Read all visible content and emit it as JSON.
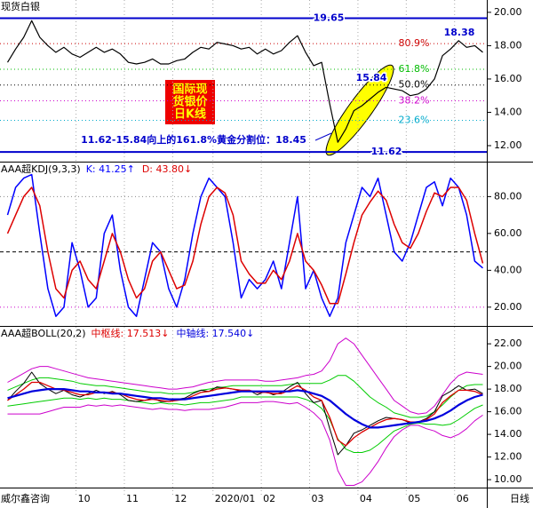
{
  "chart_data": [
    {
      "type": "line",
      "title": "现货白银",
      "series": [
        {
          "color": "#000000",
          "width": 1.2,
          "values": [
            17.0,
            17.8,
            18.5,
            19.5,
            18.5,
            18.0,
            17.6,
            17.9,
            17.5,
            17.3,
            17.6,
            17.9,
            17.6,
            17.8,
            17.5,
            17.0,
            16.9,
            17.0,
            17.2,
            16.9,
            16.9,
            17.1,
            17.2,
            17.6,
            17.9,
            17.8,
            18.2,
            18.1,
            18.0,
            17.8,
            17.9,
            17.5,
            17.8,
            17.5,
            17.7,
            18.2,
            18.6,
            17.6,
            16.8,
            17.0,
            14.5,
            12.2,
            13.0,
            14.1,
            14.4,
            14.8,
            15.2,
            15.5,
            15.4,
            15.3,
            15.0,
            15.1,
            15.4,
            16.0,
            17.4,
            17.8,
            18.3,
            17.9,
            18.0,
            17.6
          ]
        }
      ],
      "ylim": [
        11.04,
        20.74
      ],
      "yticks": [
        {
          "value": 12,
          "label": "12.00"
        },
        {
          "value": 14,
          "label": "14.00"
        },
        {
          "value": 16,
          "label": "16.00"
        },
        {
          "value": 18,
          "label": "18.00"
        },
        {
          "value": 20,
          "label": "20.00"
        }
      ],
      "hlines": [
        {
          "value": 19.65,
          "label": "19.65",
          "color": "#0000cc",
          "style": "solid"
        },
        {
          "value": 11.62,
          "label": "11.62",
          "color": "#0000cc",
          "style": "solid"
        },
        {
          "value": 18.12,
          "label": "80.9%",
          "color": "#cc0000",
          "style": "dotted"
        },
        {
          "value": 16.58,
          "label": "61.8%",
          "color": "#00bb00",
          "style": "dotted"
        },
        {
          "value": 15.64,
          "label": "50.0%",
          "color": "#000000",
          "style": "dotted"
        },
        {
          "value": 14.69,
          "label": "38.2%",
          "color": "#cc00cc",
          "style": "dotted"
        },
        {
          "value": 13.52,
          "label": "23.6%",
          "color": "#00aacc",
          "style": "dotted"
        }
      ],
      "annotations": [
        {
          "text": "15.84",
          "color": "#0000cc"
        },
        {
          "text": "18.38",
          "color": "#0000cc"
        },
        {
          "text": "11.62-15.84向上的161.8%黄金分割位：18.45",
          "color": "#0000cc"
        }
      ],
      "badge": [
        "国际现",
        "货银价",
        "日K线"
      ]
    },
    {
      "type": "line",
      "title": "AAA超KDJ(9,3,3)",
      "series": [
        {
          "name": "K: 41.25↑",
          "color": "#0000ff",
          "width": 1.5,
          "values": [
            70,
            85,
            90,
            92,
            60,
            30,
            15,
            20,
            55,
            40,
            20,
            25,
            60,
            70,
            40,
            20,
            15,
            35,
            55,
            50,
            30,
            20,
            35,
            60,
            80,
            90,
            85,
            80,
            55,
            25,
            35,
            30,
            35,
            45,
            30,
            55,
            80,
            30,
            40,
            25,
            15,
            25,
            55,
            70,
            85,
            80,
            90,
            70,
            50,
            45,
            55,
            70,
            85,
            88,
            75,
            90,
            85,
            70,
            45,
            41.25
          ]
        },
        {
          "name": "D: 43.80↓",
          "color": "#dd0000",
          "width": 1.5,
          "values": [
            60,
            70,
            80,
            85,
            75,
            50,
            30,
            25,
            40,
            45,
            35,
            30,
            45,
            60,
            50,
            35,
            25,
            30,
            45,
            50,
            40,
            30,
            32,
            45,
            65,
            80,
            85,
            82,
            70,
            45,
            38,
            33,
            33,
            40,
            35,
            45,
            60,
            45,
            40,
            32,
            22,
            22,
            38,
            55,
            70,
            77,
            83,
            78,
            65,
            55,
            52,
            60,
            72,
            82,
            80,
            85,
            85,
            78,
            60,
            43.8
          ]
        }
      ],
      "ylim": [
        9.8,
        98.5
      ],
      "yticks": [
        {
          "value": 20,
          "label": "20.00"
        },
        {
          "value": 40,
          "label": "40.00"
        },
        {
          "value": 60,
          "label": "60.00"
        },
        {
          "value": 80,
          "label": "80.00"
        }
      ],
      "hlines": [
        {
          "value": 80,
          "color": "#888888",
          "style": "dotted"
        },
        {
          "value": 50,
          "color": "#000000",
          "style": "dashed"
        },
        {
          "value": 20,
          "color": "#cc00cc",
          "style": "dotted"
        }
      ]
    },
    {
      "type": "line",
      "title": "AAA超BOLL(20,2)",
      "series": [
        {
          "color": "#cc00cc",
          "width": 1,
          "values": [
            18.6,
            19.0,
            19.4,
            19.8,
            20.0,
            20.0,
            19.8,
            19.6,
            19.4,
            19.2,
            19.0,
            18.9,
            18.8,
            18.7,
            18.6,
            18.5,
            18.4,
            18.3,
            18.2,
            18.1,
            18.0,
            18.0,
            18.1,
            18.2,
            18.4,
            18.6,
            18.7,
            18.8,
            18.8,
            18.8,
            18.8,
            18.8,
            18.7,
            18.7,
            18.8,
            18.9,
            19.0,
            19.2,
            19.3,
            19.6,
            20.5,
            22.0,
            22.5,
            22.0,
            21.0,
            20.0,
            19.0,
            18.0,
            17.0,
            16.5,
            16.0,
            15.8,
            15.9,
            16.5,
            17.5,
            18.5,
            19.2,
            19.5,
            19.4,
            19.3
          ]
        },
        {
          "color": "#cc00cc",
          "width": 1,
          "values": [
            15.8,
            15.8,
            15.8,
            15.8,
            15.8,
            16.0,
            16.2,
            16.4,
            16.4,
            16.4,
            16.6,
            16.5,
            16.6,
            16.5,
            16.6,
            16.5,
            16.4,
            16.3,
            16.2,
            16.3,
            16.2,
            16.2,
            16.1,
            16.2,
            16.2,
            16.2,
            16.3,
            16.4,
            16.6,
            16.8,
            16.8,
            16.8,
            16.9,
            16.9,
            16.8,
            16.7,
            16.8,
            16.4,
            15.9,
            15.2,
            13.5,
            10.8,
            9.5,
            9.5,
            9.8,
            10.6,
            11.6,
            12.8,
            13.8,
            14.4,
            14.8,
            14.8,
            14.5,
            14.3,
            13.9,
            13.7,
            14.0,
            14.5,
            15.2,
            15.7
          ]
        },
        {
          "color": "#00cc00",
          "width": 1,
          "values": [
            17.9,
            18.2,
            18.5,
            18.8,
            19.0,
            19.0,
            18.9,
            18.8,
            18.7,
            18.5,
            18.4,
            18.3,
            18.3,
            18.2,
            18.1,
            18.0,
            17.9,
            17.8,
            17.7,
            17.7,
            17.6,
            17.6,
            17.6,
            17.7,
            17.9,
            18.0,
            18.1,
            18.2,
            18.3,
            18.3,
            18.3,
            18.3,
            18.3,
            18.3,
            18.3,
            18.4,
            18.5,
            18.5,
            18.5,
            18.5,
            18.8,
            19.2,
            19.2,
            18.7,
            18.0,
            17.3,
            16.8,
            16.4,
            15.9,
            15.7,
            15.5,
            15.5,
            15.6,
            16.0,
            16.6,
            17.3,
            17.9,
            18.3,
            18.4,
            18.4
          ]
        },
        {
          "color": "#00cc00",
          "width": 1,
          "values": [
            16.5,
            16.6,
            16.7,
            16.8,
            16.9,
            17.0,
            17.1,
            17.2,
            17.2,
            17.1,
            17.2,
            17.1,
            17.2,
            17.1,
            17.1,
            17.0,
            16.9,
            16.8,
            16.7,
            16.8,
            16.7,
            16.7,
            16.6,
            16.7,
            16.8,
            16.8,
            16.9,
            17.0,
            17.1,
            17.3,
            17.3,
            17.3,
            17.3,
            17.3,
            17.3,
            17.3,
            17.3,
            17.1,
            16.8,
            16.3,
            15.3,
            13.6,
            12.7,
            12.4,
            12.4,
            12.6,
            13.1,
            13.7,
            14.3,
            14.6,
            14.9,
            15.0,
            14.9,
            14.9,
            14.8,
            14.9,
            15.3,
            15.8,
            16.3,
            16.6
          ]
        },
        {
          "color": "#000000",
          "width": 1,
          "values": [
            17.0,
            17.8,
            18.5,
            19.5,
            18.5,
            18.0,
            17.6,
            17.9,
            17.5,
            17.3,
            17.6,
            17.9,
            17.6,
            17.8,
            17.5,
            17.0,
            16.9,
            17.0,
            17.2,
            16.9,
            16.9,
            17.1,
            17.2,
            17.6,
            17.9,
            17.8,
            18.2,
            18.1,
            18.0,
            17.8,
            17.9,
            17.5,
            17.8,
            17.5,
            17.7,
            18.2,
            18.6,
            17.6,
            16.8,
            17.0,
            14.5,
            12.2,
            13.0,
            14.1,
            14.4,
            14.8,
            15.2,
            15.5,
            15.4,
            15.3,
            15.0,
            15.1,
            15.4,
            16.0,
            17.4,
            17.8,
            18.3,
            17.9,
            18.0,
            17.6
          ]
        },
        {
          "name": "中枢线: 17.513↓",
          "color": "#dd0000",
          "width": 1.3,
          "values": [
            17.0,
            17.5,
            18.0,
            18.6,
            18.6,
            18.3,
            18.0,
            17.9,
            17.7,
            17.5,
            17.5,
            17.7,
            17.7,
            17.7,
            17.6,
            17.3,
            17.1,
            17.0,
            17.1,
            17.0,
            16.9,
            17.0,
            17.1,
            17.4,
            17.7,
            17.8,
            18.0,
            18.1,
            18.0,
            17.9,
            17.9,
            17.7,
            17.7,
            17.6,
            17.6,
            17.9,
            18.3,
            17.9,
            17.3,
            17.0,
            15.5,
            13.5,
            13.0,
            13.7,
            14.2,
            14.6,
            15.0,
            15.3,
            15.4,
            15.3,
            15.1,
            15.1,
            15.3,
            15.8,
            16.8,
            17.4,
            17.9,
            17.9,
            17.8,
            17.5
          ]
        },
        {
          "name": "中轴线: 17.540↓",
          "color": "#0000dd",
          "width": 2.2,
          "values": [
            17.2,
            17.4,
            17.6,
            17.8,
            17.9,
            18.0,
            18.0,
            18.0,
            17.9,
            17.8,
            17.8,
            17.7,
            17.7,
            17.6,
            17.6,
            17.5,
            17.4,
            17.3,
            17.2,
            17.2,
            17.1,
            17.1,
            17.1,
            17.2,
            17.3,
            17.4,
            17.5,
            17.6,
            17.7,
            17.8,
            17.8,
            17.8,
            17.8,
            17.8,
            17.8,
            17.8,
            17.9,
            17.8,
            17.6,
            17.4,
            17.0,
            16.4,
            15.8,
            15.3,
            14.9,
            14.6,
            14.6,
            14.7,
            14.8,
            14.9,
            15.0,
            15.1,
            15.2,
            15.4,
            15.7,
            16.1,
            16.6,
            17.0,
            17.3,
            17.5
          ]
        }
      ],
      "ylim": [
        9.3,
        23.5
      ],
      "yticks": [
        {
          "value": 10,
          "label": "10.00"
        },
        {
          "value": 12,
          "label": "12.00"
        },
        {
          "value": 14,
          "label": "14.00"
        },
        {
          "value": 16,
          "label": "16.00"
        },
        {
          "value": 18,
          "label": "18.00"
        },
        {
          "value": 20,
          "label": "20.00"
        },
        {
          "value": 22,
          "label": "22.00"
        }
      ],
      "categories": [
        null,
        null,
        null,
        null,
        null,
        null,
        null,
        null,
        null,
        "10",
        null,
        null,
        null,
        null,
        null,
        "11",
        null,
        null,
        null,
        null,
        null,
        "12",
        null,
        null,
        null,
        null,
        "2020/01",
        null,
        null,
        null,
        null,
        null,
        "02",
        null,
        null,
        null,
        null,
        null,
        "03",
        null,
        null,
        null,
        null,
        null,
        "04",
        null,
        null,
        null,
        null,
        null,
        "05",
        null,
        null,
        null,
        null,
        null,
        "06",
        null,
        null,
        null
      ],
      "footer": "威尔鑫咨询",
      "xlabel": "日线"
    }
  ]
}
